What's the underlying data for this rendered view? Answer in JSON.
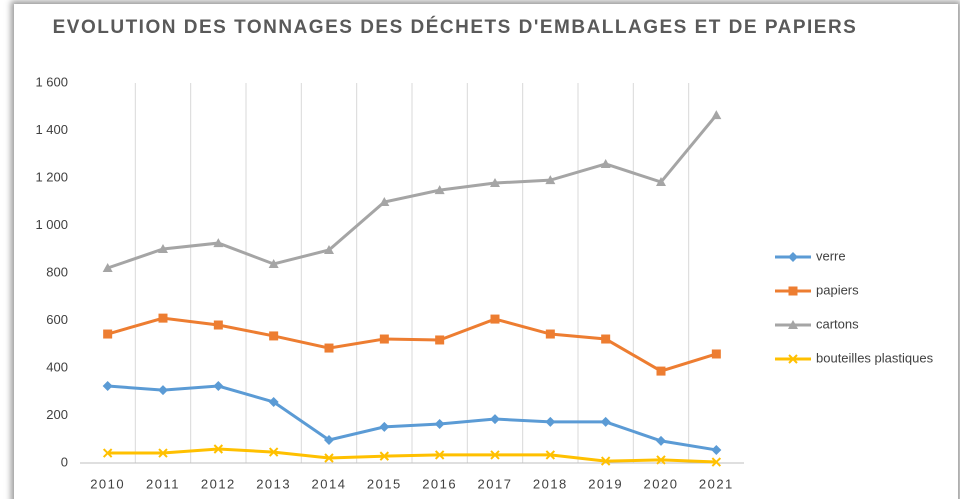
{
  "chart_data": {
    "type": "line",
    "title": "EVOLUTION DES TONNAGES DES DÉCHETS D'EMBALLAGES ET DE PAPIERS",
    "categories": [
      "2010",
      "2011",
      "2012",
      "2013",
      "2014",
      "2015",
      "2016",
      "2017",
      "2018",
      "2019",
      "2020",
      "2021"
    ],
    "series": [
      {
        "name": "verre",
        "color": "#5b9bd5",
        "marker": "diamond",
        "values": [
          324,
          307,
          324,
          257,
          97,
          152,
          164,
          185,
          173,
          173,
          93,
          55
        ]
      },
      {
        "name": "papiers",
        "color": "#ed7d31",
        "marker": "square",
        "values": [
          543,
          610,
          581,
          535,
          484,
          522,
          518,
          606,
          543,
          522,
          387,
          459
        ]
      },
      {
        "name": "cartons",
        "color": "#a5a5a5",
        "marker": "triangle",
        "values": [
          821,
          901,
          926,
          838,
          897,
          1099,
          1149,
          1179,
          1191,
          1259,
          1183,
          1465
        ]
      },
      {
        "name": "bouteilles plastiques",
        "color": "#ffc000",
        "marker": "x",
        "values": [
          42,
          42,
          59,
          46,
          21,
          29,
          34,
          34,
          34,
          8,
          13,
          4
        ]
      }
    ],
    "ylim": [
      0,
      1600
    ],
    "yticks": [
      0,
      200,
      400,
      600,
      800,
      {
        "value": 1000,
        "label": "1 000"
      },
      {
        "value": 1200,
        "label": "1 200"
      },
      {
        "value": 1400,
        "label": "1 400"
      },
      {
        "value": 1600,
        "label": "1 600"
      }
    ],
    "legend": "right"
  }
}
